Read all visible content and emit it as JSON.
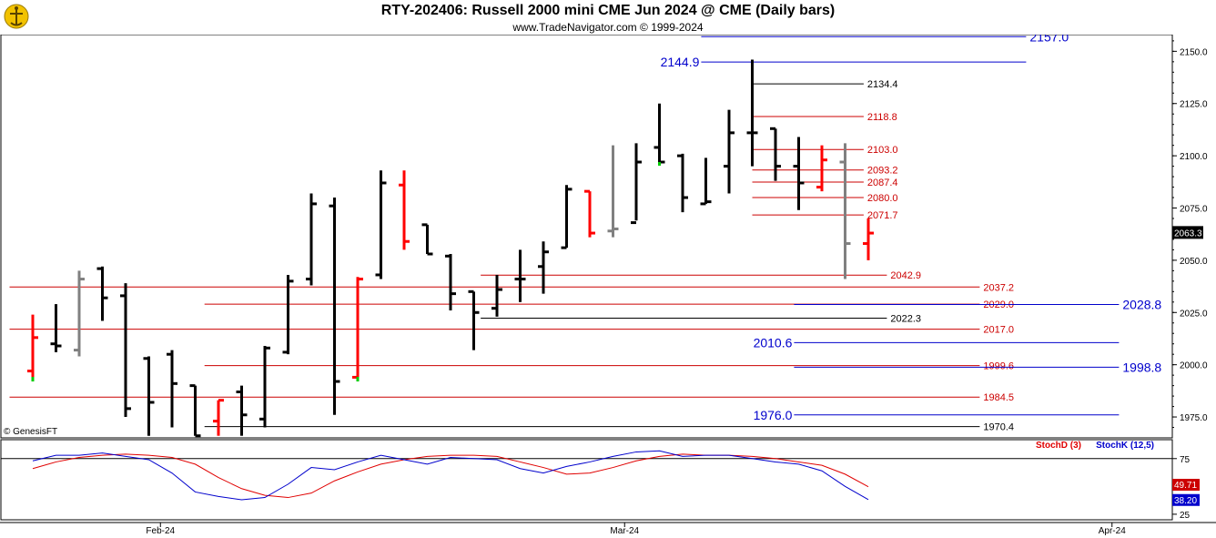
{
  "title": "RTY-202406:  Russell 2000 mini CME Jun 2024 @ CME  (Daily bars)",
  "subtitle": "www.TradeNavigator.com © 1999-2024",
  "watermark": "© GenesisFT",
  "colors": {
    "up": "#ff0000",
    "down": "#000000",
    "neutral": "#808080",
    "blue_level": "#0000cc",
    "red_level": "#cc0000",
    "black_level": "#000000",
    "stochD": "#e00000",
    "stochK": "#0000cc"
  },
  "chart_data": [
    {
      "type": "ohlc",
      "title": "RTY-202406:  Russell 2000 mini CME Jun 2024 @ CME  (Daily bars)",
      "ylim": [
        1965,
        2158
      ],
      "y_ticks": [
        1975.0,
        2000.0,
        2025.0,
        2050.0,
        2075.0,
        2100.0,
        2125.0,
        2150.0
      ],
      "x_tick_labels": [
        {
          "label": "Feb-24",
          "bar": 5.5
        },
        {
          "label": "Mar-24",
          "bar": 25.5
        },
        {
          "label": "Apr-24",
          "bar": 46.5
        }
      ],
      "last_price": "2063.3",
      "bars": [
        {
          "o": 1997,
          "h": 2024,
          "l": 1992,
          "c": 2013,
          "color": "red"
        },
        {
          "o": 2010,
          "h": 2029,
          "l": 2006,
          "c": 2009,
          "color": "black"
        },
        {
          "o": 2007,
          "h": 2045,
          "l": 2004,
          "c": 2041,
          "color": "gray"
        },
        {
          "o": 2046,
          "h": 2047,
          "l": 2021,
          "c": 2032,
          "color": "black"
        },
        {
          "o": 2033,
          "h": 2039,
          "l": 1975,
          "c": 1979,
          "color": "black"
        },
        {
          "o": 2003,
          "h": 2004,
          "l": 1966,
          "c": 1982,
          "color": "black"
        },
        {
          "o": 2005,
          "h": 2007,
          "l": 1970,
          "c": 1991,
          "color": "black"
        },
        {
          "o": 1990,
          "h": 1990,
          "l": 1966,
          "c": 1966,
          "color": "black"
        },
        {
          "o": 1973,
          "h": 1983,
          "l": 1966,
          "c": 1983,
          "color": "red"
        },
        {
          "o": 1987,
          "h": 1990,
          "l": 1966,
          "c": 1976,
          "color": "black"
        },
        {
          "o": 1974,
          "h": 2009,
          "l": 1970,
          "c": 2008,
          "color": "black"
        },
        {
          "o": 2006,
          "h": 2043,
          "l": 2005,
          "c": 2040,
          "color": "black"
        },
        {
          "o": 2041,
          "h": 2082,
          "l": 2038,
          "c": 2077,
          "color": "black"
        },
        {
          "o": 2076,
          "h": 2080,
          "l": 1976,
          "c": 1992,
          "color": "black"
        },
        {
          "o": 1994,
          "h": 2042,
          "l": 1992,
          "c": 2041,
          "color": "red"
        },
        {
          "o": 2043,
          "h": 2093,
          "l": 2041,
          "c": 2087,
          "color": "black"
        },
        {
          "o": 2086,
          "h": 2093,
          "l": 2055,
          "c": 2059,
          "color": "red"
        },
        {
          "o": 2067,
          "h": 2067,
          "l": 2053,
          "c": 2053,
          "color": "black"
        },
        {
          "o": 2052,
          "h": 2053,
          "l": 2026,
          "c": 2034,
          "color": "black"
        },
        {
          "o": 2035,
          "h": 2035,
          "l": 2007,
          "c": 2025,
          "color": "black"
        },
        {
          "o": 2027,
          "h": 2043,
          "l": 2023,
          "c": 2036,
          "color": "black"
        },
        {
          "o": 2041,
          "h": 2055,
          "l": 2030,
          "c": 2041,
          "color": "black"
        },
        {
          "o": 2047,
          "h": 2059,
          "l": 2034,
          "c": 2054,
          "color": "black"
        },
        {
          "o": 2056,
          "h": 2086,
          "l": 2056,
          "c": 2084,
          "color": "black"
        },
        {
          "o": 2083,
          "h": 2083,
          "l": 2061,
          "c": 2063,
          "color": "red"
        },
        {
          "o": 2064,
          "h": 2105,
          "l": 2061,
          "c": 2065,
          "color": "gray"
        },
        {
          "o": 2068,
          "h": 2106,
          "l": 2069,
          "c": 2097,
          "color": "black"
        },
        {
          "o": 2104,
          "h": 2125,
          "l": 2097,
          "c": 2097,
          "color": "black",
          "low_tick": "green"
        },
        {
          "o": 2100,
          "h": 2101,
          "l": 2073,
          "c": 2080,
          "color": "black"
        },
        {
          "o": 2077,
          "h": 2099,
          "l": 2077,
          "c": 2078,
          "color": "black"
        },
        {
          "o": 2095,
          "h": 2122,
          "l": 2082,
          "c": 2111,
          "color": "black"
        },
        {
          "o": 2111,
          "h": 2146,
          "l": 2095,
          "c": 2111,
          "color": "black"
        },
        {
          "o": 2113,
          "h": 2113,
          "l": 2088,
          "c": 2095,
          "color": "black"
        },
        {
          "o": 2095,
          "h": 2109,
          "l": 2074,
          "c": 2087,
          "color": "black"
        },
        {
          "o": 2085,
          "h": 2105,
          "l": 2083,
          "c": 2098,
          "color": "red"
        },
        {
          "o": 2097,
          "h": 2106,
          "l": 2041,
          "c": 2058,
          "color": "gray"
        },
        {
          "o": 2058,
          "h": 2070,
          "l": 2050,
          "c": 2063,
          "color": "red"
        }
      ],
      "levels": [
        {
          "value": 2157.0,
          "label": "2157.0",
          "color": "blue",
          "from_bar": 28.8,
          "to_bar": 42.8,
          "label_side": "right"
        },
        {
          "value": 2144.9,
          "label": "2144.9",
          "color": "blue",
          "from_bar": 28.8,
          "to_bar": 42.8,
          "label_side": "left"
        },
        {
          "value": 2134.4,
          "label": "2134.4",
          "color": "black",
          "from_bar": 31.0,
          "to_bar": 35.8,
          "label_side": "right"
        },
        {
          "value": 2118.8,
          "label": "2118.8",
          "color": "red",
          "from_bar": 31.0,
          "to_bar": 35.8,
          "label_side": "right"
        },
        {
          "value": 2103.0,
          "label": "2103.0",
          "color": "red",
          "from_bar": 31.0,
          "to_bar": 35.8,
          "label_side": "right"
        },
        {
          "value": 2093.2,
          "label": "2093.2",
          "color": "red",
          "from_bar": 31.0,
          "to_bar": 35.8,
          "label_side": "right"
        },
        {
          "value": 2087.4,
          "label": "2087.4",
          "color": "red",
          "from_bar": 31.0,
          "to_bar": 35.8,
          "label_side": "right"
        },
        {
          "value": 2080.0,
          "label": "2080.0",
          "color": "red",
          "from_bar": 31.0,
          "to_bar": 35.8,
          "label_side": "right"
        },
        {
          "value": 2071.7,
          "label": "2071.7",
          "color": "red",
          "from_bar": 31.0,
          "to_bar": 35.8,
          "label_side": "right"
        },
        {
          "value": 2042.9,
          "label": "2042.9",
          "color": "red",
          "from_bar": 19.3,
          "to_bar": 36.8,
          "label_side": "right"
        },
        {
          "value": 2037.2,
          "label": "2037.2",
          "color": "red",
          "from_bar": -1.0,
          "to_bar": 40.8,
          "label_side": "right"
        },
        {
          "value": 2029.0,
          "label": "2029.0",
          "color": "red",
          "from_bar": 7.4,
          "to_bar": 40.8,
          "label_side": "right"
        },
        {
          "value": 2028.8,
          "label": "2028.8",
          "color": "blue",
          "from_bar": 32.8,
          "to_bar": 46.8,
          "label_side": "right"
        },
        {
          "value": 2022.3,
          "label": "2022.3",
          "color": "black",
          "from_bar": 19.3,
          "to_bar": 36.8,
          "label_side": "right"
        },
        {
          "value": 2017.0,
          "label": "2017.0",
          "color": "red",
          "from_bar": -1.0,
          "to_bar": 40.8,
          "label_side": "right"
        },
        {
          "value": 2010.6,
          "label": "2010.6",
          "color": "blue",
          "from_bar": 32.8,
          "to_bar": 46.8,
          "label_side": "left"
        },
        {
          "value": 1999.6,
          "label": "1999.6",
          "color": "red",
          "from_bar": 7.4,
          "to_bar": 40.8,
          "label_side": "right"
        },
        {
          "value": 1998.8,
          "label": "1998.8",
          "color": "blue",
          "from_bar": 32.8,
          "to_bar": 46.8,
          "label_side": "right"
        },
        {
          "value": 1984.5,
          "label": "1984.5",
          "color": "red",
          "from_bar": -1.0,
          "to_bar": 40.8,
          "label_side": "right"
        },
        {
          "value": 1976.0,
          "label": "1976.0",
          "color": "blue",
          "from_bar": 32.8,
          "to_bar": 46.8,
          "label_side": "left"
        },
        {
          "value": 1970.4,
          "label": "1970.4",
          "color": "black",
          "from_bar": 7.4,
          "to_bar": 40.8,
          "label_side": "right"
        }
      ]
    },
    {
      "type": "line",
      "ylim": [
        20,
        92
      ],
      "y_ticks": [
        25,
        75
      ],
      "reference_line": 75,
      "series": [
        {
          "name": "StochD (3)",
          "color": "red",
          "last_label": "49.71",
          "values": [
            66,
            72,
            76,
            78,
            79,
            78,
            76,
            70,
            58,
            48,
            42,
            40,
            44,
            55,
            63,
            70,
            74,
            77,
            78,
            78,
            77,
            72,
            67,
            61,
            62,
            67,
            73,
            77,
            79,
            78,
            78,
            77,
            75,
            72,
            69,
            61,
            49.71
          ]
        },
        {
          "name": "StochK (12,5)",
          "color": "blue",
          "last_label": "38.20",
          "values": [
            73,
            78,
            78,
            80,
            77,
            74,
            62,
            45,
            41,
            38,
            40,
            52,
            67,
            65,
            72,
            78,
            74,
            70,
            76,
            75,
            74,
            66,
            62,
            68,
            72,
            77,
            81,
            82,
            77,
            78,
            78,
            75,
            72,
            70,
            64,
            50,
            38.2
          ]
        }
      ]
    }
  ]
}
